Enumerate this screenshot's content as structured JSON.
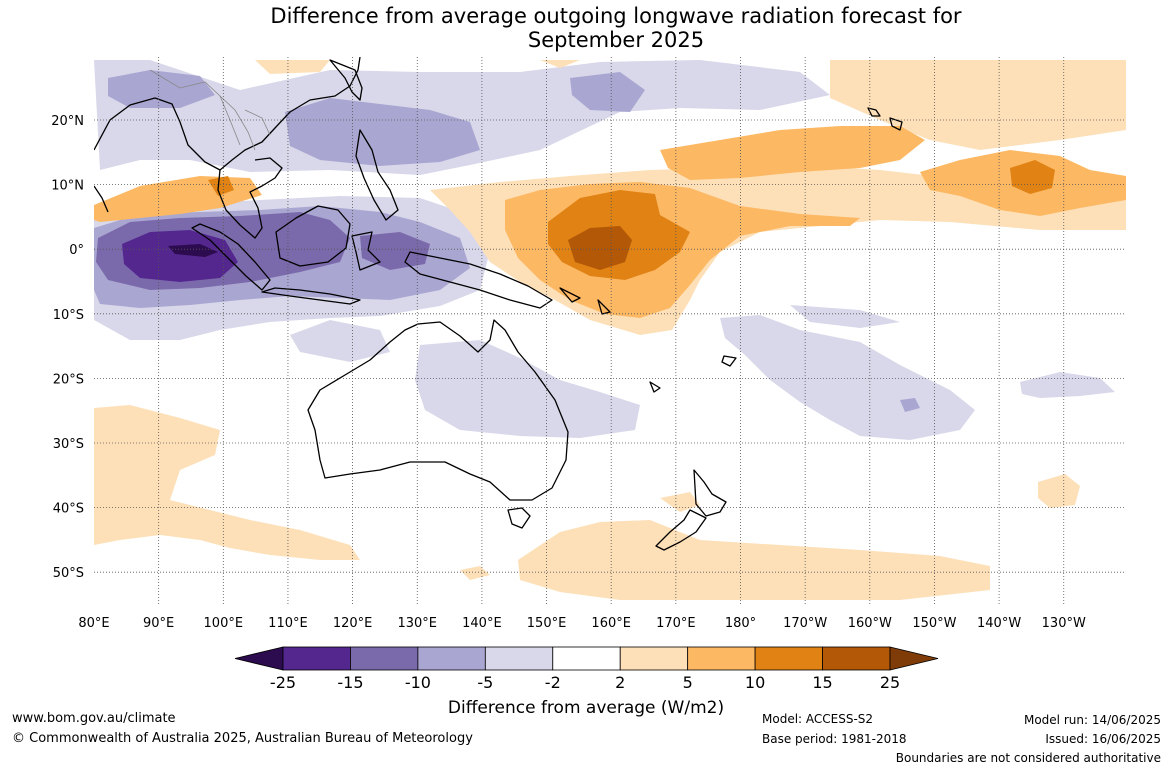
{
  "title": {
    "line1": "Difference from average outgoing longwave radiation forecast for",
    "line2": "September 2025"
  },
  "map": {
    "lat_labels": [
      "20°N",
      "10°N",
      "0°",
      "10°S",
      "20°S",
      "30°S",
      "40°S",
      "50°S"
    ],
    "lon_labels": [
      "80°E",
      "90°E",
      "100°E",
      "110°E",
      "120°E",
      "130°E",
      "140°E",
      "150°E",
      "160°E",
      "170°E",
      "180°",
      "170°W",
      "160°W",
      "150°W",
      "140°W",
      "130°W"
    ]
  },
  "colorbar": {
    "title": "Difference from average (W/m2)",
    "tick_labels": [
      "-25",
      "-15",
      "-10",
      "-5",
      "-2",
      "2",
      "5",
      "10",
      "15",
      "25"
    ],
    "colors": [
      "#2c0b4f",
      "#54278f",
      "#7b6aab",
      "#aaa6d2",
      "#d8d8ea",
      "#ffffff",
      "#fde0b8",
      "#fdb863",
      "#e08214",
      "#b35806",
      "#7f3b08"
    ]
  },
  "footer": {
    "website": "www.bom.gov.au/climate",
    "copyright": "© Commonwealth of Australia 2025, Australian Bureau of Meteorology",
    "model": "Model: ACCESS-S2",
    "base_period": "Base period: 1981-2018",
    "model_run": "Model run: 14/06/2025",
    "issued": "Issued: 16/06/2025",
    "boundaries_note": "Boundaries are not considered authoritative"
  }
}
